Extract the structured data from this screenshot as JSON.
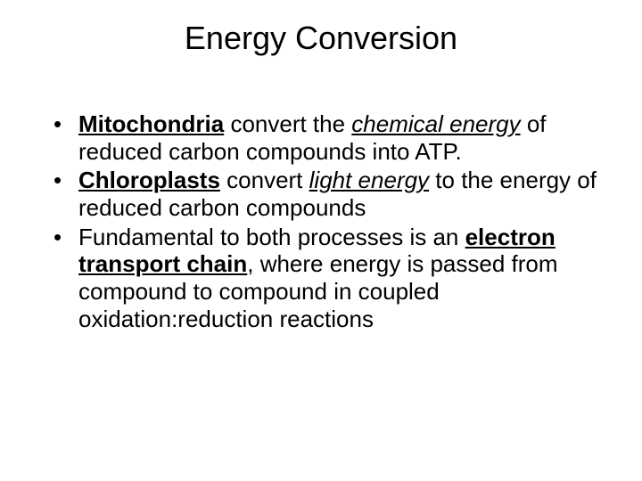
{
  "title": "Energy Conversion",
  "bullets": [
    {
      "parts": [
        {
          "text": "Mitochondria",
          "bold": true,
          "underline": true
        },
        {
          "text": " convert the "
        },
        {
          "text": "chemical energy",
          "italic": true,
          "underline": true
        },
        {
          "text": " of reduced carbon compounds into ATP."
        }
      ]
    },
    {
      "parts": [
        {
          "text": "Chloroplasts",
          "bold": true,
          "underline": true
        },
        {
          "text": " convert "
        },
        {
          "text": "light energy",
          "italic": true,
          "underline": true
        },
        {
          "text": " to the energy of reduced carbon compounds"
        }
      ]
    },
    {
      "parts": [
        {
          "text": "Fundamental to both processes is an "
        },
        {
          "text": "electron transport chain",
          "bold": true,
          "underline": true
        },
        {
          "text": ", where energy is passed from compound to compound in coupled oxidation:reduction reactions"
        }
      ]
    }
  ],
  "styling": {
    "background_color": "#ffffff",
    "text_color": "#000000",
    "title_fontsize": 36,
    "body_fontsize": 26,
    "font_family": "Arial"
  }
}
